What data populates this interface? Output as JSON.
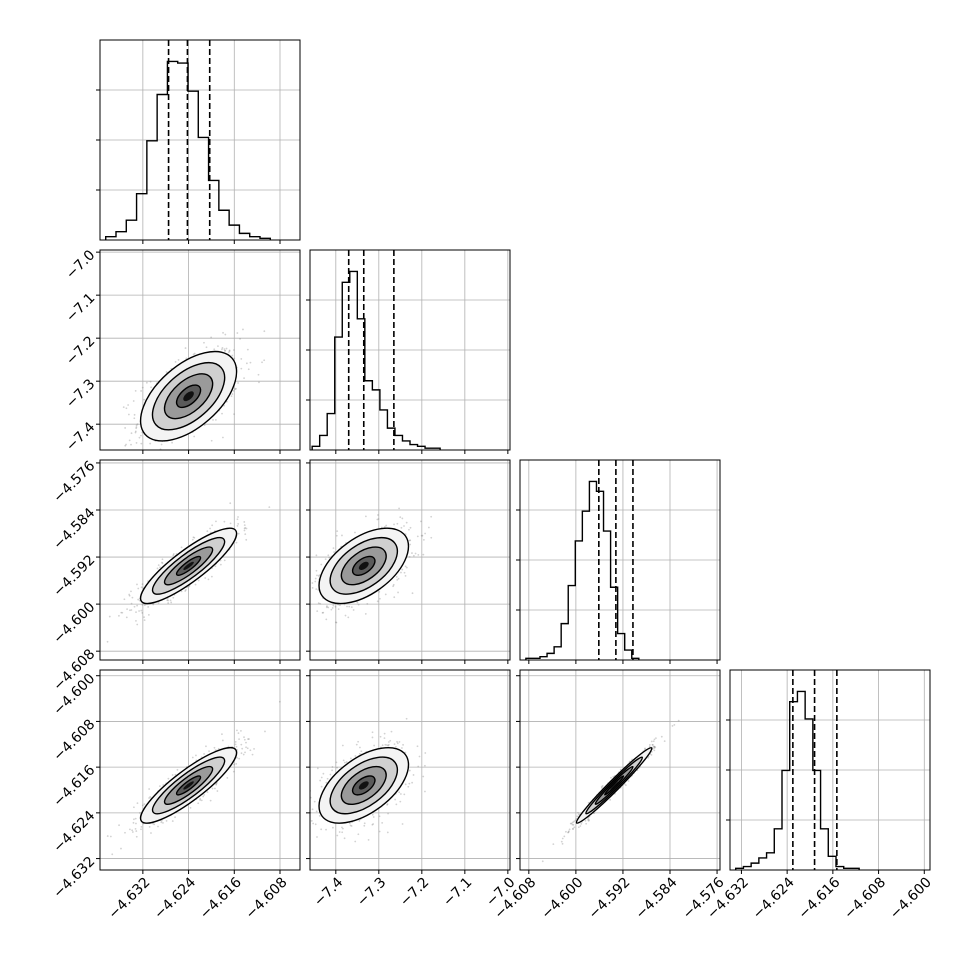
{
  "chart_data": {
    "type": "corner",
    "description_note": "corner plot of 4 parameters; histograms on diagonal, 2D density contours off-diagonal",
    "parameters": [
      {
        "index": 0,
        "range": [
          -4.6395,
          -4.6045
        ],
        "ticks": [
          "−4.632",
          "−4.624",
          "−4.616",
          "−4.608"
        ],
        "tick_values": [
          -4.632,
          -4.624,
          -4.616,
          -4.608
        ],
        "quantiles": [
          -4.6275,
          -4.6242,
          -4.6203
        ],
        "hist": {
          "start": -4.6385,
          "width": 0.0018,
          "counts": [
            2,
            5,
            12,
            28,
            60,
            88,
            108,
            107,
            90,
            62,
            36,
            18,
            9,
            4,
            2,
            1
          ]
        }
      },
      {
        "index": 1,
        "range": [
          -7.46,
          -6.995
        ],
        "ticks": [
          "−7.4",
          "−7.3",
          "−7.2",
          "−7.1",
          "−7.0"
        ],
        "tick_values": [
          -7.4,
          -7.3,
          -7.2,
          -7.1,
          -7.0
        ],
        "quantiles": [
          -7.37,
          -7.335,
          -7.265
        ],
        "hist": {
          "start": -7.455,
          "width": 0.0175,
          "counts": [
            2,
            8,
            20,
            62,
            92,
            98,
            72,
            38,
            33,
            22,
            12,
            8,
            5,
            3,
            2,
            1,
            1
          ]
        }
      },
      {
        "index": 2,
        "range": [
          -4.6095,
          -4.5755
        ],
        "ticks": [
          "−4.608",
          "−4.600",
          "−4.592",
          "−4.584",
          "−4.576"
        ],
        "tick_values": [
          -4.608,
          -4.6,
          -4.592,
          -4.584,
          -4.576
        ],
        "quantiles": [
          -4.5961,
          -4.5932,
          -4.5903
        ],
        "hist": {
          "start": -4.6085,
          "width": 0.0012,
          "counts": [
            1,
            1,
            2,
            4,
            8,
            22,
            45,
            72,
            90,
            108,
            102,
            78,
            44,
            16,
            6,
            1
          ]
        }
      },
      {
        "index": 3,
        "range": [
          -4.634,
          -4.599
        ],
        "ticks": [
          "−4.632",
          "−4.624",
          "−4.616",
          "−4.608",
          "−4.600"
        ],
        "tick_values": [
          -4.632,
          -4.624,
          -4.616,
          -4.608,
          -4.6
        ],
        "quantiles": [
          -4.623,
          -4.6192,
          -4.6153
        ],
        "hist": {
          "start": -4.633,
          "width": 0.00135,
          "counts": [
            1,
            2,
            4,
            7,
            10,
            24,
            58,
            98,
            104,
            88,
            58,
            24,
            8,
            2,
            1,
            1
          ]
        }
      }
    ],
    "pairs": [
      {
        "x": 0,
        "y": 1,
        "mean": [
          -4.624,
          -7.335
        ],
        "sd": [
          0.0042,
          0.052
        ],
        "rho": 0.55
      },
      {
        "x": 0,
        "y": 2,
        "mean": [
          -4.624,
          -4.5935
        ],
        "sd": [
          0.0042,
          0.0032
        ],
        "rho": 0.86
      },
      {
        "x": 1,
        "y": 2,
        "mean": [
          -7.335,
          -4.5935
        ],
        "sd": [
          0.052,
          0.0032
        ],
        "rho": 0.52
      },
      {
        "x": 0,
        "y": 3,
        "mean": [
          -4.624,
          -4.6192
        ],
        "sd": [
          0.0042,
          0.0033
        ],
        "rho": 0.87
      },
      {
        "x": 1,
        "y": 3,
        "mean": [
          -7.335,
          -4.6192
        ],
        "sd": [
          0.052,
          0.0033
        ],
        "rho": 0.55
      },
      {
        "x": 2,
        "y": 3,
        "mean": [
          -4.5935,
          -4.6192
        ],
        "sd": [
          0.0032,
          0.0033
        ],
        "rho": 0.98
      }
    ],
    "contour_levels_sigma": [
      0.5,
      1.0,
      1.5,
      2.0
    ],
    "colors": {
      "line": "#000000",
      "grid": "#b0b0b0",
      "scatter": "#7f7f7f"
    }
  }
}
